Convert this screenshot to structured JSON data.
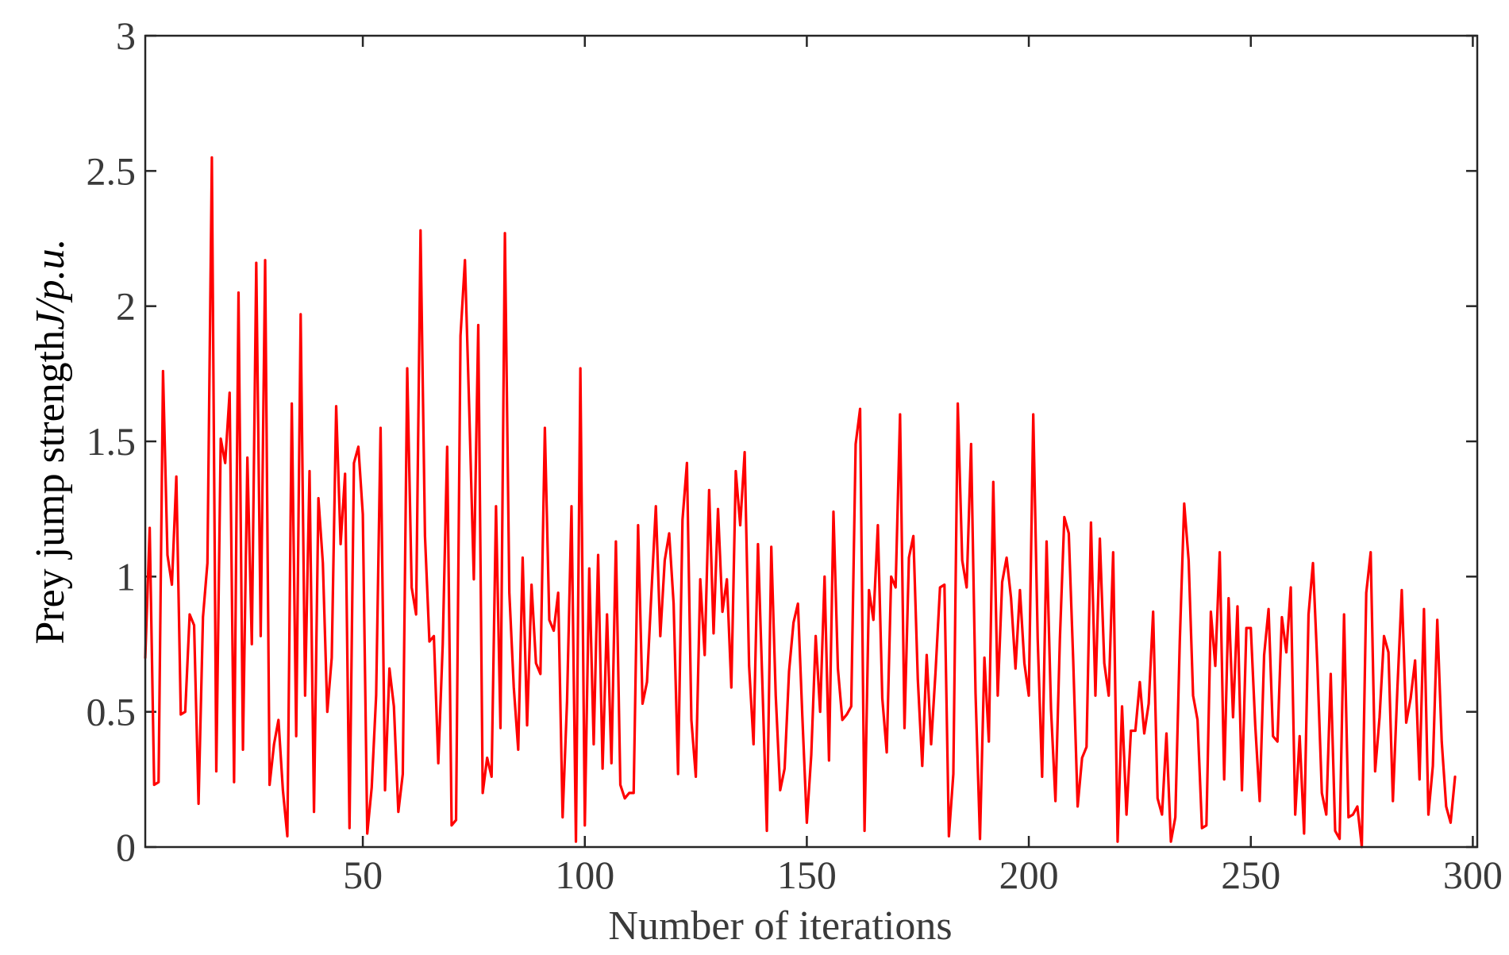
{
  "chart_data": {
    "type": "line",
    "title": "",
    "xlabel": "Number of iterations",
    "ylabel": "Prey jump strength",
    "ylabel_symbol": "J",
    "ylabel_unit": "/p.u.",
    "xlim": [
      1,
      301
    ],
    "ylim": [
      0,
      3
    ],
    "xticks": [
      50,
      100,
      150,
      200,
      250,
      300
    ],
    "yticks": [
      0,
      0.5,
      1,
      1.5,
      2,
      2.5,
      3
    ],
    "xtick_labels": [
      "50",
      "100",
      "150",
      "200",
      "250",
      "300"
    ],
    "ytick_labels": [
      "0",
      "0.5",
      "1",
      "1.5",
      "2",
      "2.5",
      "3"
    ],
    "grid": false,
    "line_color": "#ff0000",
    "series": [
      {
        "values": [
          0.7,
          1.18,
          0.23,
          0.24,
          1.76,
          1.08,
          0.97,
          1.37,
          0.49,
          0.5,
          0.86,
          0.82,
          0.16,
          0.85,
          1.05,
          2.55,
          0.28,
          1.51,
          1.42,
          1.68,
          0.24,
          2.05,
          0.36,
          1.44,
          0.75,
          2.16,
          0.78,
          2.17,
          0.23,
          0.38,
          0.47,
          0.21,
          0.04,
          1.64,
          0.41,
          1.97,
          0.56,
          1.39,
          0.13,
          1.29,
          1.05,
          0.5,
          0.7,
          1.63,
          1.12,
          1.38,
          0.07,
          1.42,
          1.48,
          1.23,
          0.05,
          0.22,
          0.56,
          1.55,
          0.21,
          0.66,
          0.52,
          0.13,
          0.27,
          1.77,
          0.96,
          0.86,
          2.28,
          1.15,
          0.76,
          0.78,
          0.31,
          0.75,
          1.48,
          0.08,
          0.1,
          1.89,
          2.17,
          1.6,
          0.99,
          1.93,
          0.2,
          0.33,
          0.26,
          1.26,
          0.44,
          2.27,
          0.94,
          0.59,
          0.36,
          1.07,
          0.45,
          0.97,
          0.68,
          0.64,
          1.55,
          0.84,
          0.8,
          0.94,
          0.11,
          0.54,
          1.26,
          0.02,
          1.77,
          0.08,
          1.03,
          0.38,
          1.08,
          0.29,
          0.86,
          0.31,
          1.13,
          0.23,
          0.18,
          0.2,
          0.2,
          1.19,
          0.53,
          0.61,
          0.94,
          1.26,
          0.78,
          1.06,
          1.16,
          0.9,
          0.27,
          1.21,
          1.42,
          0.47,
          0.26,
          0.99,
          0.71,
          1.32,
          0.79,
          1.25,
          0.87,
          0.99,
          0.59,
          1.39,
          1.19,
          1.46,
          0.67,
          0.38,
          1.12,
          0.6,
          0.06,
          1.11,
          0.56,
          0.21,
          0.29,
          0.65,
          0.83,
          0.9,
          0.48,
          0.09,
          0.34,
          0.78,
          0.5,
          1.0,
          0.32,
          1.24,
          0.66,
          0.47,
          0.49,
          0.52,
          1.49,
          1.62,
          0.06,
          0.95,
          0.84,
          1.19,
          0.55,
          0.35,
          1.0,
          0.96,
          1.6,
          0.44,
          1.07,
          1.15,
          0.62,
          0.3,
          0.71,
          0.38,
          0.65,
          0.96,
          0.97,
          0.04,
          0.27,
          1.64,
          1.06,
          0.96,
          1.49,
          0.57,
          0.03,
          0.7,
          0.39,
          1.35,
          0.56,
          0.98,
          1.07,
          0.92,
          0.66,
          0.95,
          0.68,
          0.56,
          1.6,
          0.77,
          0.26,
          1.13,
          0.51,
          0.17,
          0.77,
          1.22,
          1.16,
          0.69,
          0.15,
          0.33,
          0.37,
          1.2,
          0.56,
          1.14,
          0.68,
          0.56,
          1.09,
          0.02,
          0.52,
          0.12,
          0.43,
          0.43,
          0.61,
          0.42,
          0.53,
          0.87,
          0.18,
          0.12,
          0.42,
          0.02,
          0.11,
          0.76,
          1.27,
          1.06,
          0.56,
          0.47,
          0.07,
          0.08,
          0.87,
          0.67,
          1.09,
          0.25,
          0.92,
          0.48,
          0.89,
          0.21,
          0.81,
          0.81,
          0.45,
          0.17,
          0.71,
          0.88,
          0.41,
          0.39,
          0.85,
          0.72,
          0.96,
          0.12,
          0.41,
          0.05,
          0.86,
          1.05,
          0.67,
          0.2,
          0.12,
          0.64,
          0.06,
          0.03,
          0.86,
          0.11,
          0.12,
          0.15,
          0.0,
          0.94,
          1.09,
          0.28,
          0.48,
          0.78,
          0.72,
          0.17,
          0.58,
          0.95,
          0.46,
          0.55,
          0.69,
          0.25,
          0.88,
          0.12,
          0.3,
          0.84,
          0.39,
          0.15,
          0.09,
          0.26
        ]
      }
    ]
  }
}
